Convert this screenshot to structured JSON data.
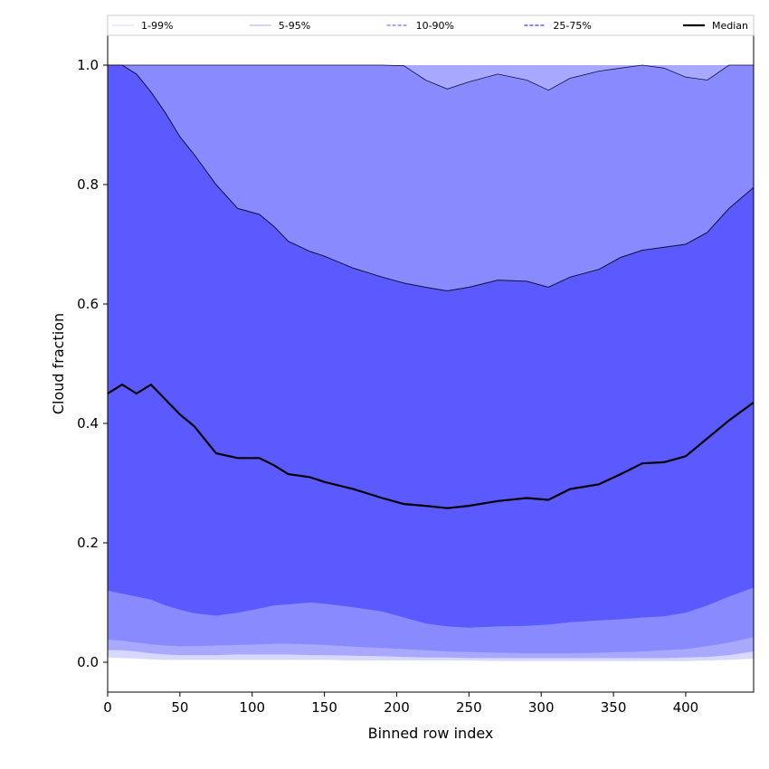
{
  "chart_data": {
    "type": "area",
    "title": "",
    "xlabel": "Binned row index",
    "ylabel": "Cloud fraction",
    "xlim": [
      0,
      447
    ],
    "ylim": [
      -0.05,
      1.05
    ],
    "x_ticks": [
      0,
      50,
      100,
      150,
      200,
      250,
      300,
      350,
      400
    ],
    "y_ticks": [
      0.0,
      0.2,
      0.4,
      0.6,
      0.8,
      1.0
    ],
    "grid": false,
    "legend_position": "top, above plot",
    "legend": [
      {
        "label": "1-99%",
        "color": "#d8d8ff",
        "style": "solid-thin"
      },
      {
        "label": "5-95%",
        "color": "#a8a8ff",
        "style": "solid-thin"
      },
      {
        "label": "10-90%",
        "color": "#8a8aff",
        "style": "dashed"
      },
      {
        "label": "25-75%",
        "color": "#5a5aff",
        "style": "dashed"
      },
      {
        "label": "Median",
        "color": "#000000",
        "style": "solid-thick"
      }
    ],
    "x": [
      0,
      10,
      20,
      30,
      40,
      50,
      60,
      75,
      90,
      105,
      115,
      125,
      140,
      150,
      170,
      190,
      205,
      220,
      235,
      250,
      270,
      290,
      305,
      320,
      340,
      355,
      370,
      385,
      400,
      415,
      430,
      447
    ],
    "series": [
      {
        "name": "1-99%",
        "color": "#d8d8ff",
        "lower": [
          0.008,
          0.007,
          0.006,
          0.005,
          0.004,
          0.004,
          0.004,
          0.004,
          0.004,
          0.004,
          0.004,
          0.004,
          0.004,
          0.004,
          0.003,
          0.003,
          0.003,
          0.003,
          0.003,
          0.003,
          0.002,
          0.002,
          0.002,
          0.002,
          0.002,
          0.002,
          0.002,
          0.002,
          0.002,
          0.003,
          0.004,
          0.006
        ],
        "upper": [
          1.0,
          1.0,
          1.0,
          1.0,
          1.0,
          1.0,
          1.0,
          1.0,
          1.0,
          1.0,
          1.0,
          1.0,
          1.0,
          1.0,
          1.0,
          1.0,
          1.0,
          1.0,
          1.0,
          1.0,
          1.0,
          1.0,
          1.0,
          1.0,
          1.0,
          1.0,
          1.0,
          1.0,
          1.0,
          1.0,
          1.0,
          1.0
        ]
      },
      {
        "name": "5-95%",
        "color": "#a8a8ff",
        "lower": [
          0.02,
          0.02,
          0.018,
          0.015,
          0.013,
          0.012,
          0.012,
          0.012,
          0.013,
          0.013,
          0.013,
          0.013,
          0.012,
          0.012,
          0.011,
          0.01,
          0.009,
          0.008,
          0.008,
          0.007,
          0.007,
          0.007,
          0.007,
          0.007,
          0.007,
          0.007,
          0.007,
          0.007,
          0.008,
          0.009,
          0.012,
          0.018
        ],
        "upper": [
          1.0,
          1.0,
          1.0,
          1.0,
          1.0,
          1.0,
          1.0,
          1.0,
          1.0,
          1.0,
          1.0,
          1.0,
          1.0,
          1.0,
          1.0,
          1.0,
          1.0,
          1.0,
          1.0,
          1.0,
          1.0,
          1.0,
          1.0,
          1.0,
          1.0,
          1.0,
          1.0,
          1.0,
          1.0,
          1.0,
          1.0,
          1.0
        ]
      },
      {
        "name": "10-90%",
        "color": "#8a8aff",
        "lower": [
          0.038,
          0.036,
          0.033,
          0.03,
          0.028,
          0.027,
          0.027,
          0.028,
          0.029,
          0.03,
          0.031,
          0.031,
          0.03,
          0.029,
          0.026,
          0.024,
          0.022,
          0.02,
          0.018,
          0.017,
          0.016,
          0.015,
          0.015,
          0.015,
          0.016,
          0.017,
          0.018,
          0.02,
          0.022,
          0.027,
          0.033,
          0.042
        ],
        "upper": [
          1.0,
          1.0,
          1.0,
          1.0,
          1.0,
          1.0,
          1.0,
          1.0,
          1.0,
          1.0,
          1.0,
          1.0,
          1.0,
          1.0,
          1.0,
          1.0,
          0.999,
          0.975,
          0.96,
          0.972,
          0.985,
          0.975,
          0.958,
          0.978,
          0.99,
          0.995,
          1.0,
          0.995,
          0.98,
          0.975,
          1.0,
          1.0
        ]
      },
      {
        "name": "25-75%",
        "color": "#5a5aff",
        "lower": [
          0.12,
          0.115,
          0.11,
          0.105,
          0.095,
          0.088,
          0.082,
          0.078,
          0.083,
          0.09,
          0.095,
          0.097,
          0.1,
          0.098,
          0.092,
          0.085,
          0.075,
          0.065,
          0.06,
          0.058,
          0.06,
          0.061,
          0.063,
          0.067,
          0.07,
          0.072,
          0.075,
          0.077,
          0.083,
          0.095,
          0.11,
          0.125
        ],
        "upper": [
          1.0,
          1.0,
          0.985,
          0.955,
          0.92,
          0.88,
          0.85,
          0.8,
          0.76,
          0.75,
          0.73,
          0.705,
          0.688,
          0.68,
          0.66,
          0.645,
          0.635,
          0.628,
          0.622,
          0.628,
          0.64,
          0.638,
          0.628,
          0.645,
          0.658,
          0.678,
          0.69,
          0.695,
          0.7,
          0.72,
          0.76,
          0.795
        ]
      },
      {
        "name": "Median",
        "color": "#000000",
        "values": [
          0.45,
          0.465,
          0.45,
          0.465,
          0.44,
          0.415,
          0.395,
          0.35,
          0.342,
          0.342,
          0.33,
          0.315,
          0.31,
          0.302,
          0.29,
          0.275,
          0.265,
          0.262,
          0.258,
          0.262,
          0.27,
          0.275,
          0.272,
          0.29,
          0.298,
          0.315,
          0.333,
          0.335,
          0.345,
          0.375,
          0.405,
          0.435
        ]
      }
    ]
  }
}
